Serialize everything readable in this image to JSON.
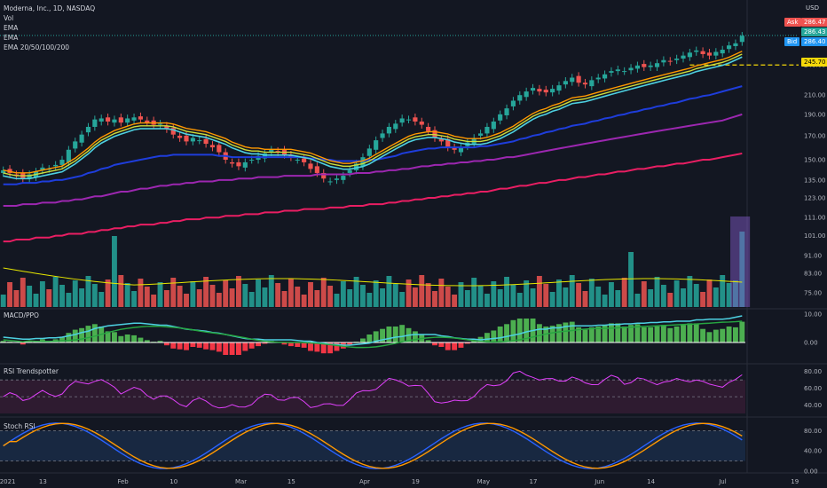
{
  "header": {
    "symbol_line": "Moderna, Inc., 1D, NASDAQ",
    "vol_label": "Vol",
    "ema1_label": "EMA",
    "ema2_label": "EMA",
    "ema3_label": "EMA 20/50/100/200",
    "currency": "USD"
  },
  "price_labels": {
    "ask_tag": "Ask",
    "ask_value": "286.47",
    "last_value": "286.43",
    "bid_tag": "Bid",
    "bid_value": "286.40",
    "level_value": "245.70"
  },
  "panes": {
    "macd": "MACD/PPO",
    "rsi": "RSI Trendspotter",
    "stoch": "Stoch RSI"
  },
  "colors": {
    "background": "#131722",
    "up": "#26a69a",
    "down": "#ef5350",
    "ema_fast1": "#ff9800",
    "ema_fast2": "#cddc39",
    "ema_fast3": "#4dd0e1",
    "ema50": "#1e3ddb",
    "ema100": "#9c27b0",
    "ema200": "#e91e63",
    "vol_ma": "#e6e600",
    "level_line": "#f5d90a",
    "ask_bg": "#ef5350",
    "bid_bg": "#2196f3",
    "last_bg": "#26a69a"
  },
  "chart_data": {
    "type": "candlestick",
    "price_axis_ticks": [
      "246.00",
      "210.00",
      "190.00",
      "170.00",
      "150.00",
      "135.00",
      "123.00",
      "111.00",
      "101.00",
      "91.00",
      "83.00",
      "75.00"
    ],
    "price_axis_values": [
      246,
      210,
      190,
      170,
      150,
      135,
      123,
      111,
      101,
      91,
      83,
      75
    ],
    "x_axis_ticks": [
      "2021",
      "13",
      "Feb",
      "10",
      "Mar",
      "15",
      "Apr",
      "19",
      "May",
      "17",
      "Jun",
      "14",
      "Jul",
      "19"
    ],
    "x_axis_positions": [
      0,
      6,
      18,
      26,
      36,
      44,
      55,
      63,
      73,
      81,
      91,
      99,
      110,
      121
    ],
    "macd_ticks": [
      "10.00",
      "0.00"
    ],
    "rsi_ticks": [
      "80.00",
      "60.00",
      "40.00"
    ],
    "stoch_ticks": [
      "80.00",
      "40.00",
      "0.00"
    ],
    "close": [
      142,
      140,
      138,
      136,
      139,
      141,
      144,
      143,
      146,
      150,
      158,
      165,
      171,
      178,
      185,
      186,
      183,
      185,
      182,
      186,
      187,
      185,
      182,
      180,
      181,
      176,
      171,
      168,
      165,
      168,
      166,
      163,
      160,
      156,
      150,
      147,
      145,
      148,
      150,
      153,
      155,
      158,
      156,
      154,
      152,
      150,
      148,
      143,
      140,
      136,
      134,
      136,
      138,
      142,
      147,
      152,
      159,
      166,
      172,
      178,
      181,
      186,
      185,
      183,
      180,
      174,
      168,
      165,
      160,
      158,
      160,
      164,
      168,
      172,
      178,
      183,
      190,
      196,
      204,
      210,
      214,
      218,
      214,
      213,
      217,
      221,
      226,
      230,
      224,
      222,
      227,
      230,
      234,
      238,
      240,
      238,
      242,
      245,
      243,
      245,
      248,
      252,
      250,
      254,
      258,
      262,
      265,
      260,
      258,
      263,
      266,
      272,
      275,
      286
    ],
    "ema20": [
      140,
      139,
      138,
      138,
      138,
      139,
      140,
      141,
      142,
      143,
      146,
      149,
      153,
      157,
      162,
      166,
      169,
      172,
      174,
      176,
      178,
      179,
      179,
      179,
      179,
      179,
      178,
      176,
      174,
      173,
      172,
      171,
      169,
      167,
      165,
      162,
      160,
      158,
      157,
      157,
      156,
      156,
      156,
      156,
      156,
      155,
      154,
      153,
      151,
      149,
      147,
      146,
      145,
      145,
      146,
      147,
      149,
      152,
      155,
      158,
      161,
      164,
      167,
      169,
      170,
      171,
      171,
      170,
      169,
      167,
      166,
      165,
      165,
      165,
      166,
      168,
      170,
      173,
      176,
      180,
      184,
      188,
      191,
      193,
      196,
      198,
      201,
      204,
      205,
      206,
      208,
      210,
      212,
      214,
      216,
      218,
      220,
      222,
      224,
      226,
      228,
      230,
      232,
      234,
      236,
      238,
      241,
      243,
      245,
      247,
      249,
      252,
      256,
      260
    ],
    "ema50": [
      132,
      132,
      132,
      133,
      133,
      133,
      134,
      134,
      135,
      135,
      136,
      137,
      138,
      140,
      141,
      143,
      144,
      146,
      147,
      148,
      149,
      150,
      151,
      152,
      153,
      153,
      154,
      154,
      154,
      154,
      154,
      154,
      154,
      153,
      153,
      152,
      152,
      152,
      152,
      152,
      152,
      152,
      152,
      152,
      152,
      152,
      152,
      151,
      151,
      150,
      150,
      149,
      149,
      149,
      149,
      149,
      150,
      150,
      151,
      152,
      153,
      155,
      156,
      157,
      158,
      159,
      159,
      160,
      160,
      160,
      160,
      160,
      160,
      161,
      161,
      162,
      163,
      164,
      165,
      167,
      168,
      170,
      171,
      173,
      174,
      176,
      177,
      179,
      180,
      181,
      183,
      184,
      186,
      187,
      189,
      190,
      192,
      193,
      195,
      196,
      198,
      199,
      201,
      202,
      204,
      206,
      207,
      209,
      210,
      212,
      214,
      216,
      218,
      220
    ],
    "ema100": [
      118,
      118,
      118,
      119,
      119,
      119,
      120,
      120,
      120,
      121,
      121,
      122,
      122,
      123,
      124,
      124,
      125,
      126,
      127,
      127,
      128,
      129,
      129,
      130,
      131,
      131,
      132,
      132,
      133,
      133,
      134,
      134,
      134,
      135,
      135,
      135,
      136,
      136,
      136,
      137,
      137,
      137,
      137,
      138,
      138,
      138,
      138,
      138,
      139,
      139,
      139,
      139,
      139,
      139,
      140,
      140,
      140,
      141,
      141,
      142,
      142,
      143,
      143,
      144,
      145,
      145,
      146,
      146,
      147,
      147,
      148,
      148,
      149,
      149,
      150,
      150,
      151,
      152,
      152,
      153,
      154,
      155,
      156,
      157,
      158,
      159,
      160,
      161,
      162,
      163,
      164,
      165,
      166,
      167,
      168,
      169,
      170,
      171,
      172,
      173,
      174,
      175,
      176,
      177,
      178,
      179,
      180,
      181,
      182,
      183,
      184,
      186,
      188,
      190
    ],
    "ema200": [
      98,
      98,
      99,
      99,
      99,
      100,
      100,
      100,
      101,
      101,
      102,
      102,
      102,
      103,
      103,
      104,
      104,
      105,
      105,
      106,
      106,
      107,
      107,
      107,
      108,
      108,
      109,
      109,
      110,
      110,
      110,
      111,
      111,
      111,
      112,
      112,
      112,
      113,
      113,
      113,
      114,
      114,
      114,
      115,
      115,
      115,
      116,
      116,
      116,
      116,
      117,
      117,
      117,
      118,
      118,
      118,
      119,
      119,
      119,
      120,
      120,
      121,
      121,
      122,
      122,
      123,
      123,
      124,
      124,
      125,
      125,
      126,
      126,
      127,
      127,
      128,
      129,
      129,
      130,
      131,
      131,
      132,
      133,
      133,
      134,
      135,
      135,
      136,
      137,
      137,
      138,
      139,
      139,
      140,
      141,
      141,
      142,
      143,
      143,
      144,
      145,
      145,
      146,
      147,
      147,
      148,
      149,
      150,
      150,
      151,
      152,
      153,
      154,
      155
    ],
    "volume_note": "volume bars relative",
    "resistance_level": 245.7,
    "last_price": 286.43
  }
}
